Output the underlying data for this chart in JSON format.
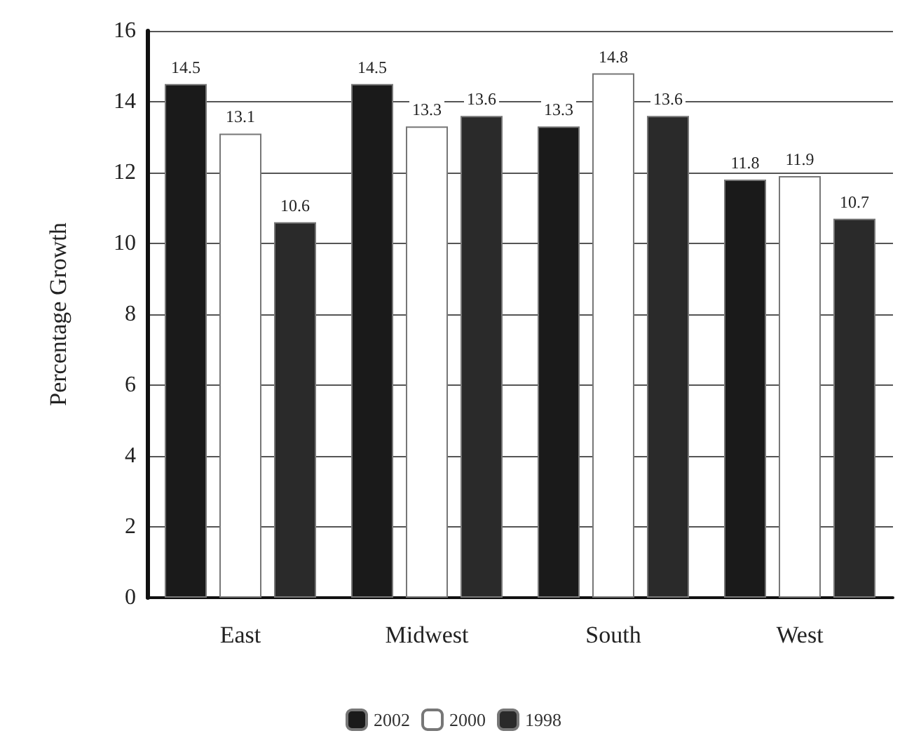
{
  "chart_data": {
    "type": "bar",
    "ylabel": "Percentage Growth",
    "categories": [
      "East",
      "Midwest",
      "South",
      "West"
    ],
    "series": [
      {
        "name": "2002",
        "color": "#1a1a1a",
        "values": [
          14.5,
          14.5,
          13.3,
          11.8
        ]
      },
      {
        "name": "2000",
        "color": "#ffffff",
        "values": [
          13.1,
          13.3,
          14.8,
          11.9
        ]
      },
      {
        "name": "1998",
        "color": "#2a2a2a",
        "values": [
          10.6,
          13.6,
          13.6,
          10.7
        ]
      }
    ],
    "ylim": [
      0,
      16
    ],
    "yticks": [
      0,
      2,
      4,
      6,
      8,
      10,
      12,
      14,
      16
    ],
    "grid": "y",
    "legend": "bottom",
    "data_labels": true
  }
}
